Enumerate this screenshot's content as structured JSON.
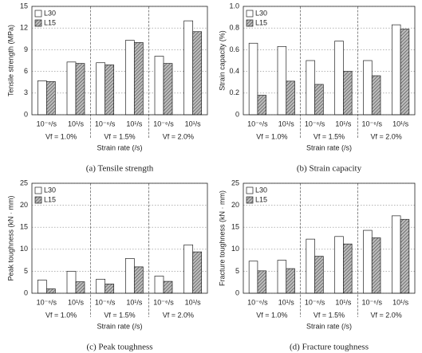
{
  "chart_data": [
    {
      "type": "bar",
      "title": "(a) Tensile strength",
      "ylabel": "Tensile strength (MPa)",
      "xlabel": "Strain rate (/s)",
      "categories": [
        "10⁻⁶/s",
        "10¹/s",
        "10⁻⁶/s",
        "10¹/s",
        "10⁻⁶/s",
        "10¹/s"
      ],
      "groups": [
        "Vf = 1.0%",
        "Vf = 1.5%",
        "Vf = 2.0%"
      ],
      "series": [
        {
          "name": "L30",
          "color": "#ffffff",
          "values": [
            4.7,
            7.3,
            7.2,
            10.3,
            8.1,
            13.0
          ]
        },
        {
          "name": "L15",
          "color": "#8c8c8c",
          "hatch": true,
          "values": [
            4.6,
            7.1,
            6.9,
            10.0,
            7.1,
            11.5
          ]
        }
      ],
      "ylim": [
        0,
        15
      ],
      "yticks": [
        0,
        3,
        6,
        9,
        12,
        15
      ],
      "grid": true,
      "legend": "top-left"
    },
    {
      "type": "bar",
      "title": "(b) Strain capacity",
      "ylabel": "Strain capacity (%)",
      "xlabel": "Strain rate (/s)",
      "categories": [
        "10⁻⁶/s",
        "10¹/s",
        "10⁻⁶/s",
        "10¹/s",
        "10⁻⁶/s",
        "10¹/s"
      ],
      "groups": [
        "Vf = 1.0%",
        "Vf = 1.5%",
        "Vf = 2.0%"
      ],
      "series": [
        {
          "name": "L30",
          "color": "#ffffff",
          "values": [
            0.66,
            0.63,
            0.5,
            0.68,
            0.5,
            0.83
          ]
        },
        {
          "name": "L15",
          "color": "#8c8c8c",
          "hatch": true,
          "values": [
            0.18,
            0.31,
            0.28,
            0.4,
            0.36,
            0.79
          ]
        }
      ],
      "ylim": [
        0,
        1
      ],
      "yticks": [
        0,
        0.2,
        0.4,
        0.6,
        0.8,
        {
          "value": 1,
          "label": "1.0"
        }
      ],
      "grid": true,
      "legend": "top-left"
    },
    {
      "type": "bar",
      "title": "(c) Peak toughness",
      "ylabel": "Peak toughness (kN · mm)",
      "xlabel": "Strain rate (/s)",
      "categories": [
        "10⁻⁶/s",
        "10¹/s",
        "10⁻⁶/s",
        "10¹/s",
        "10⁻⁶/s",
        "10¹/s"
      ],
      "groups": [
        "Vf = 1.0%",
        "Vf = 1.5%",
        "Vf = 2.0%"
      ],
      "series": [
        {
          "name": "L30",
          "color": "#ffffff",
          "values": [
            3.0,
            5.0,
            3.2,
            7.9,
            3.9,
            11.0
          ]
        },
        {
          "name": "L15",
          "color": "#8c8c8c",
          "hatch": true,
          "values": [
            1.0,
            2.6,
            2.1,
            6.0,
            2.7,
            9.4
          ]
        }
      ],
      "ylim": [
        0,
        25
      ],
      "yticks": [
        0,
        5,
        10,
        15,
        20,
        25
      ],
      "grid": true,
      "legend": "top-left"
    },
    {
      "type": "bar",
      "title": "(d) Fracture toughness",
      "ylabel": "Fracture toughness (kN · mm)",
      "xlabel": "Strain rate (/s)",
      "categories": [
        "10⁻⁶/s",
        "10¹/s",
        "10⁻⁶/s",
        "10¹/s",
        "10⁻⁶/s",
        "10¹/s"
      ],
      "groups": [
        "Vf = 1.0%",
        "Vf = 1.5%",
        "Vf = 2.0%"
      ],
      "series": [
        {
          "name": "L30",
          "color": "#ffffff",
          "values": [
            7.3,
            7.5,
            12.3,
            12.9,
            14.3,
            17.6
          ]
        },
        {
          "name": "L15",
          "color": "#8c8c8c",
          "hatch": true,
          "values": [
            5.1,
            5.6,
            8.4,
            11.2,
            12.6,
            16.8
          ]
        }
      ],
      "ylim": [
        0,
        25
      ],
      "yticks": [
        0,
        5,
        10,
        15,
        20,
        25
      ],
      "grid": true,
      "legend": "top-left"
    }
  ]
}
